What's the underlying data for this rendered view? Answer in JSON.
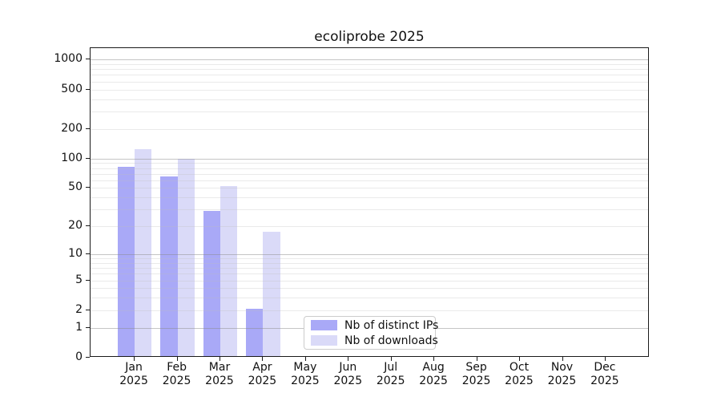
{
  "title": "ecoliprobe 2025",
  "chart_data": {
    "type": "bar",
    "title": "ecoliprobe 2025",
    "x_categories": [
      "Jan",
      "Feb",
      "Mar",
      "Apr",
      "May",
      "Jun",
      "Jul",
      "Aug",
      "Sep",
      "Oct",
      "Nov",
      "Dec"
    ],
    "x_year": "2025",
    "series": [
      {
        "name": "Nb of distinct IPs",
        "color": "#a9a9f7",
        "values": [
          79,
          63,
          28,
          2,
          0,
          0,
          0,
          0,
          0,
          0,
          0,
          0
        ]
      },
      {
        "name": "Nb of downloads",
        "color": "#dadaf8",
        "values": [
          119,
          96,
          50,
          17,
          0,
          0,
          0,
          0,
          0,
          0,
          0,
          0
        ]
      }
    ],
    "y_scale": "log1p (position proportional to log10(value+1))",
    "y_ticks": [
      0,
      1,
      2,
      5,
      10,
      20,
      50,
      100,
      200,
      500,
      1000
    ],
    "y_lim": [
      0,
      1300
    ],
    "grid": "horizontal; major gridlines at 1,10,100,1000; minor at 2-9 multiples; drawn over bars",
    "legend_position": "inside plot, bottom center"
  }
}
